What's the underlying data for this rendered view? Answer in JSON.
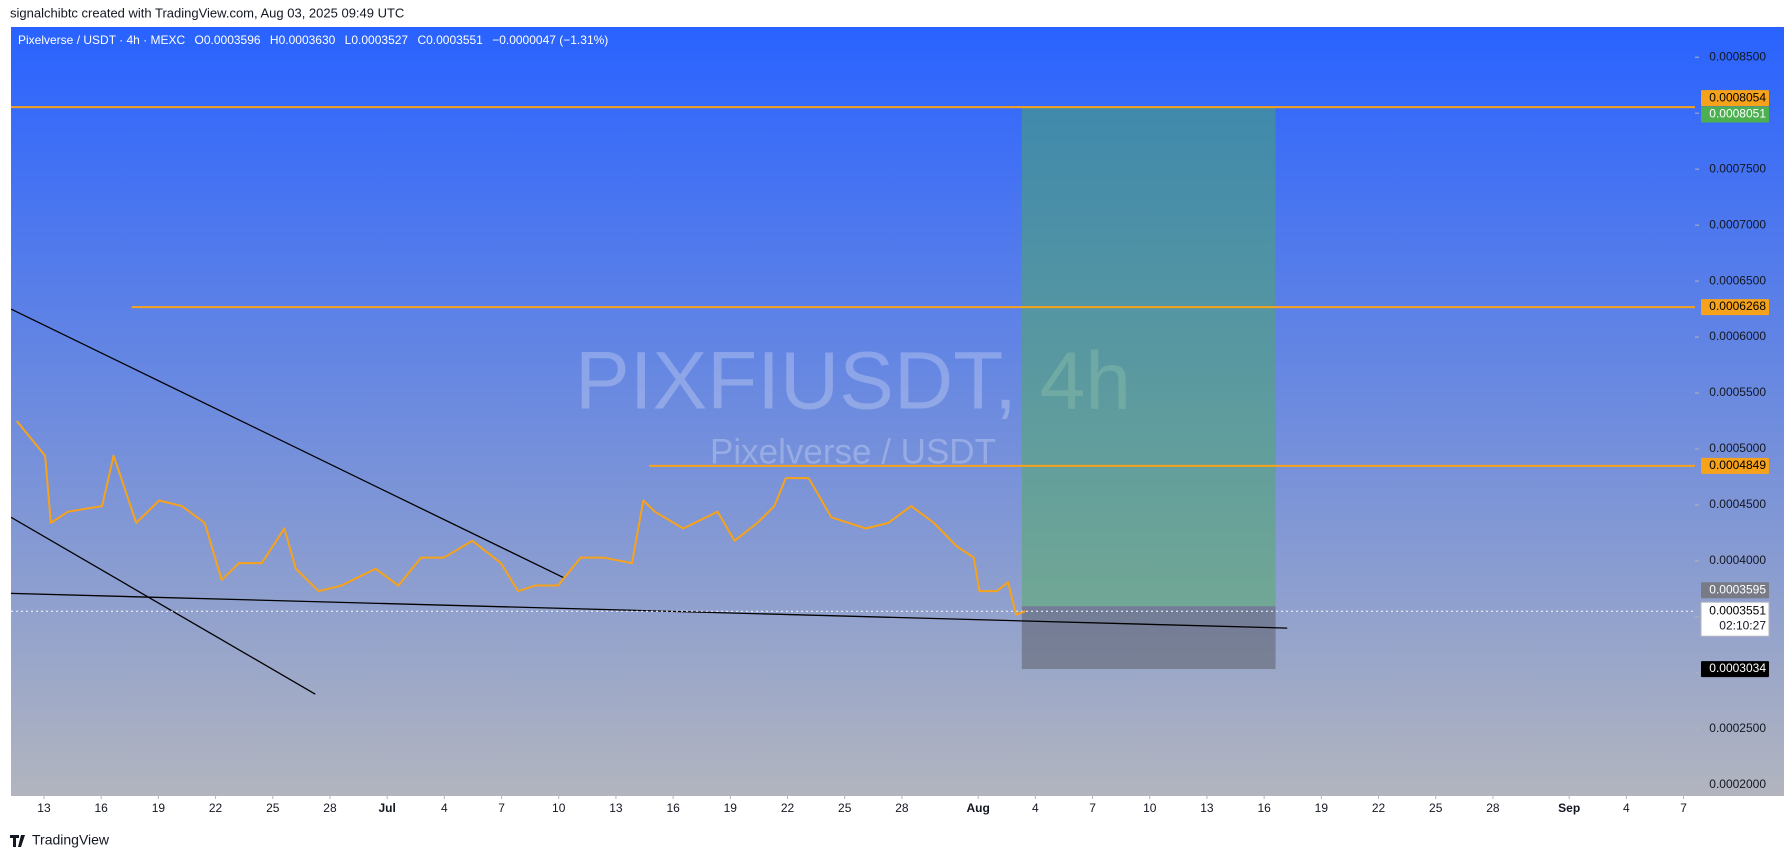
{
  "header": {
    "credit": "signalchibtc created with TradingView.com, Aug 03, 2025 09:49 UTC",
    "legend": {
      "symbol": "Pixelverse / USDT · 4h · MEXC",
      "open_label": "O",
      "open": "0.0003596",
      "high_label": "H",
      "high": "0.0003630",
      "low_label": "L",
      "low": "0.0003527",
      "close_label": "C",
      "close": "0.0003551",
      "change": "−0.0000047 (−1.31%)"
    }
  },
  "watermark": {
    "symbol": "PIXFIUSDT, 4h",
    "name": "Pixelverse / USDT"
  },
  "footer": {
    "brand": "TradingView"
  },
  "chart_data": {
    "type": "line",
    "color": "#f7a21b",
    "x": [
      11.57,
      13.06,
      13.36,
      14.26,
      16.05,
      16.65,
      17.25,
      17.84,
      19.04,
      20.23,
      21.43,
      22.32,
      23.22,
      24.42,
      25.61,
      26.21,
      27.41,
      28.6,
      30.39,
      31.59,
      32.78,
      33.98,
      35.47,
      36.97,
      37.87,
      38.76,
      39.96,
      41.15,
      42.35,
      43.84,
      44.44,
      45.04,
      46.53,
      48.33,
      49.22,
      50.42,
      51.31,
      51.91,
      53.11,
      54.3,
      56.1,
      57.29,
      58.49,
      59.68,
      60.88,
      61.77,
      62.07,
      62.97,
      63.57,
      63.99,
      64.47
    ],
    "values": [
      0.000525,
      0.000494,
      0.000434,
      0.000444,
      0.000449,
      0.000494,
      0.000464,
      0.000434,
      0.000454,
      0.000449,
      0.000434,
      0.000383,
      0.000398,
      0.000398,
      0.000429,
      0.000393,
      0.000373,
      0.000378,
      0.000393,
      0.000378,
      0.000403,
      0.000403,
      0.000418,
      0.000398,
      0.000373,
      0.000378,
      0.000378,
      0.000403,
      0.000403,
      0.000398,
      0.000454,
      0.000444,
      0.000429,
      0.000444,
      0.000418,
      0.000434,
      0.000449,
      0.000474,
      0.000474,
      0.000439,
      0.000429,
      0.000434,
      0.000449,
      0.000434,
      0.000413,
      0.000403,
      0.000373,
      0.000373,
      0.000381,
      0.000352,
      0.0003551
    ],
    "countdown": "02:10:27",
    "xlim": [
      11.27,
      99.6
    ],
    "xticks": [
      {
        "value": 13,
        "label": "13"
      },
      {
        "value": 16,
        "label": "16"
      },
      {
        "value": 19,
        "label": "19"
      },
      {
        "value": 22,
        "label": "22"
      },
      {
        "value": 25,
        "label": "25"
      },
      {
        "value": 28,
        "label": "28"
      },
      {
        "value": 31,
        "label": "Jul"
      },
      {
        "value": 34,
        "label": "4"
      },
      {
        "value": 37,
        "label": "7"
      },
      {
        "value": 40,
        "label": "10"
      },
      {
        "value": 43,
        "label": "13"
      },
      {
        "value": 46,
        "label": "16"
      },
      {
        "value": 49,
        "label": "19"
      },
      {
        "value": 52,
        "label": "22"
      },
      {
        "value": 55,
        "label": "25"
      },
      {
        "value": 58,
        "label": "28"
      },
      {
        "value": 62,
        "label": "Aug"
      },
      {
        "value": 65,
        "label": "4"
      },
      {
        "value": 68,
        "label": "7"
      },
      {
        "value": 71,
        "label": "10"
      },
      {
        "value": 74,
        "label": "13"
      },
      {
        "value": 77,
        "label": "16"
      },
      {
        "value": 80,
        "label": "19"
      },
      {
        "value": 83,
        "label": "22"
      },
      {
        "value": 86,
        "label": "25"
      },
      {
        "value": 89,
        "label": "28"
      },
      {
        "value": 93,
        "label": "Sep"
      },
      {
        "value": 96,
        "label": "4"
      },
      {
        "value": 99,
        "label": "7"
      }
    ],
    "ylim": [
      0.00019,
      0.000877
    ],
    "yticks": [
      {
        "value": 0.0002,
        "label": "0.0002000"
      },
      {
        "value": 0.00025,
        "label": "0.0002500"
      },
      {
        "value": 0.0003,
        "label": "0.0003000"
      },
      {
        "value": 0.00035,
        "label": "0.0003500"
      },
      {
        "value": 0.0004,
        "label": "0.0004000"
      },
      {
        "value": 0.00045,
        "label": "0.0004500"
      },
      {
        "value": 0.0005,
        "label": "0.0005000"
      },
      {
        "value": 0.00055,
        "label": "0.0005500"
      },
      {
        "value": 0.0006,
        "label": "0.0006000"
      },
      {
        "value": 0.00065,
        "label": "0.0006500"
      },
      {
        "value": 0.0007,
        "label": "0.0007000"
      },
      {
        "value": 0.00075,
        "label": "0.0007500"
      },
      {
        "value": 0.0008,
        "label": "0.0008000"
      },
      {
        "value": 0.00085,
        "label": "0.0008500"
      }
    ],
    "grid": false,
    "levels": [
      {
        "value": 0.0008054,
        "from": 11.27,
        "color": "#f7a21b"
      },
      {
        "value": 0.0006268,
        "from": 17.6,
        "color": "#f7a21b"
      },
      {
        "value": 0.0004849,
        "from": 44.74,
        "color": "#f7a21b"
      }
    ],
    "position": {
      "x": [
        64.29,
        77.6
      ],
      "target": 0.0008051,
      "entry": 0.0003595,
      "stop": 0.0003034,
      "target_color": "#4caf50",
      "entry_color": "#787b86",
      "stop_color": "#000000"
    },
    "trendlines": [
      {
        "x": [
          11.27,
          40.26
        ],
        "y": [
          0.000625,
          0.000385
        ]
      },
      {
        "x": [
          11.27,
          27.23
        ],
        "y": [
          0.000439,
          0.000281
        ]
      },
      {
        "x": [
          11.27,
          78.21
        ],
        "y": [
          0.000371,
          0.00034
        ]
      }
    ]
  }
}
